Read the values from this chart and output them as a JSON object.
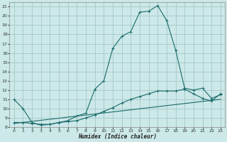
{
  "xlabel": "Humidex (Indice chaleur)",
  "bg_color": "#cce8e8",
  "grid_color": "#aacccc",
  "line_color": "#1a6b6b",
  "xlim": [
    -0.5,
    23.5
  ],
  "ylim": [
    8,
    21.5
  ],
  "yticks": [
    8,
    9,
    10,
    11,
    12,
    13,
    14,
    15,
    16,
    17,
    18,
    19,
    20,
    21
  ],
  "xticks": [
    0,
    1,
    2,
    3,
    4,
    5,
    6,
    7,
    8,
    9,
    10,
    11,
    12,
    13,
    14,
    15,
    16,
    17,
    18,
    19,
    20,
    21,
    22,
    23
  ],
  "curve1_x": [
    0,
    1,
    2,
    3,
    4,
    5,
    6,
    7,
    8,
    9,
    10,
    11,
    12,
    13,
    14,
    15,
    16,
    17,
    18,
    19,
    20,
    21,
    22,
    23
  ],
  "curve1_y": [
    11.0,
    10.0,
    8.5,
    8.2,
    8.3,
    8.5,
    8.7,
    9.2,
    9.5,
    12.1,
    13.0,
    16.5,
    17.8,
    18.3,
    20.4,
    20.5,
    21.1,
    19.5,
    16.3,
    12.2,
    12.0,
    12.2,
    11.1,
    11.5
  ],
  "curve2_x": [
    0,
    1,
    2,
    3,
    4,
    5,
    6,
    7,
    8,
    9,
    10,
    11,
    12,
    13,
    14,
    15,
    16,
    17,
    18,
    19,
    20,
    21,
    22,
    23
  ],
  "curve2_y": [
    8.5,
    8.5,
    8.4,
    8.3,
    8.3,
    8.5,
    8.6,
    8.7,
    9.0,
    9.3,
    9.7,
    10.1,
    10.6,
    11.0,
    11.3,
    11.6,
    11.9,
    11.9,
    11.9,
    12.1,
    11.6,
    11.1,
    10.8,
    11.6
  ],
  "line3_x": [
    0,
    23
  ],
  "line3_y": [
    8.4,
    11.0
  ]
}
